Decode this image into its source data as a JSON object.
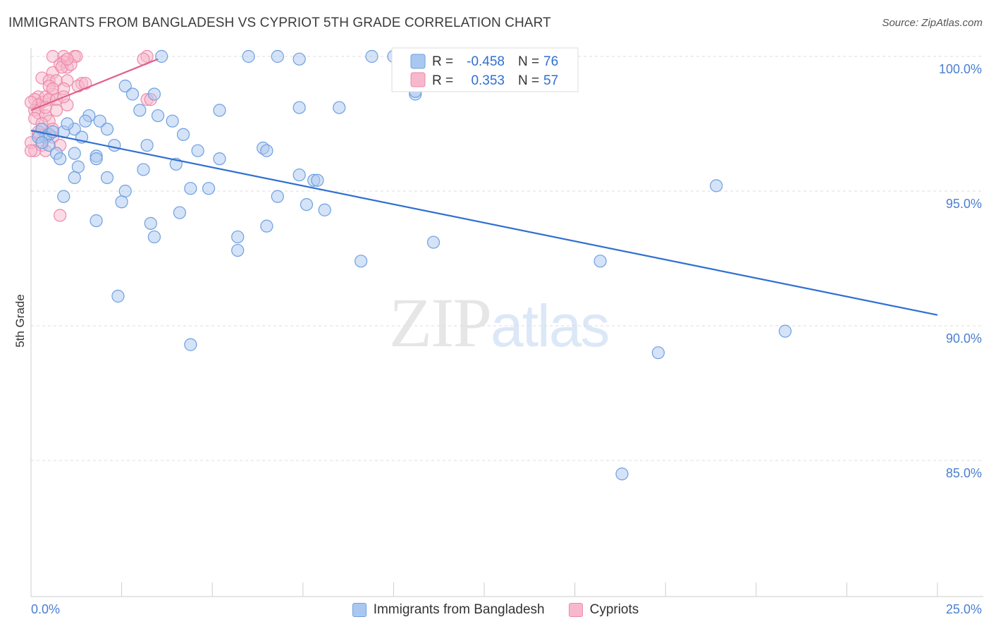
{
  "header": {
    "title": "IMMIGRANTS FROM BANGLADESH VS CYPRIOT 5TH GRADE CORRELATION CHART",
    "source": "Source: ZipAtlas.com"
  },
  "watermark": {
    "zip": "ZIP",
    "atlas": "atlas"
  },
  "colors": {
    "blue_fill": "#a9c8f0",
    "blue_stroke": "#6f9fe0",
    "blue_line": "#2f6fd0",
    "pink_fill": "#f7b8cc",
    "pink_stroke": "#ec8aaa",
    "pink_line": "#e0608a",
    "tick_text": "#4a7fd0",
    "grid": "#dddddd"
  },
  "chart_data": {
    "type": "scatter",
    "title": "IMMIGRANTS FROM BANGLADESH VS CYPRIOT 5TH GRADE CORRELATION CHART",
    "xlabel": "",
    "ylabel": "5th Grade",
    "xlim": [
      0,
      25
    ],
    "ylim": [
      80.5,
      100.4
    ],
    "x_tick_labels": [
      "0.0%",
      "25.0%"
    ],
    "y_ticks": [
      85,
      90,
      95,
      100
    ],
    "y_tick_labels": [
      "85.0%",
      "90.0%",
      "95.0%",
      "100.0%"
    ],
    "grid": true,
    "legend": {
      "position": "top-center",
      "entries": [
        {
          "r_label": "R =",
          "r_value": "-0.458",
          "n_label": "N =",
          "n_value": "76"
        },
        {
          "r_label": "R =",
          "r_value": "0.353",
          "n_label": "N =",
          "n_value": "57"
        }
      ]
    },
    "series": [
      {
        "name": "Immigrants from Bangladesh",
        "color": "#a9c8f0",
        "trend": {
          "x": [
            0.0,
            25.0
          ],
          "y": [
            97.25,
            90.4
          ]
        },
        "points": [
          [
            3.6,
            100
          ],
          [
            6.0,
            100
          ],
          [
            6.8,
            100
          ],
          [
            7.4,
            99.9
          ],
          [
            9.4,
            100
          ],
          [
            10.0,
            100
          ],
          [
            10.6,
            98.6
          ],
          [
            2.6,
            98.9
          ],
          [
            3.4,
            98.6
          ],
          [
            2.8,
            98.6
          ],
          [
            7.4,
            98.1
          ],
          [
            3.0,
            98.0
          ],
          [
            8.5,
            98.1
          ],
          [
            1.6,
            97.8
          ],
          [
            1.5,
            97.6
          ],
          [
            1.9,
            97.6
          ],
          [
            2.1,
            97.3
          ],
          [
            1.2,
            97.3
          ],
          [
            0.9,
            97.2
          ],
          [
            0.3,
            97.3
          ],
          [
            0.5,
            97.1
          ],
          [
            0.4,
            97.0
          ],
          [
            1.4,
            97.0
          ],
          [
            3.5,
            97.8
          ],
          [
            3.9,
            97.6
          ],
          [
            4.2,
            97.1
          ],
          [
            0.5,
            96.7
          ],
          [
            1.2,
            96.4
          ],
          [
            2.3,
            96.7
          ],
          [
            3.2,
            96.7
          ],
          [
            0.7,
            96.4
          ],
          [
            0.8,
            96.2
          ],
          [
            1.8,
            96.3
          ],
          [
            1.8,
            96.2
          ],
          [
            4.6,
            96.5
          ],
          [
            5.2,
            96.2
          ],
          [
            6.4,
            96.6
          ],
          [
            6.5,
            96.5
          ],
          [
            1.3,
            95.9
          ],
          [
            3.1,
            95.8
          ],
          [
            4.0,
            96.0
          ],
          [
            1.2,
            95.5
          ],
          [
            2.1,
            95.5
          ],
          [
            7.4,
            95.6
          ],
          [
            7.8,
            95.4
          ],
          [
            7.9,
            95.4
          ],
          [
            0.9,
            94.8
          ],
          [
            2.6,
            95.0
          ],
          [
            4.4,
            95.1
          ],
          [
            4.9,
            95.1
          ],
          [
            6.8,
            94.8
          ],
          [
            7.6,
            94.5
          ],
          [
            8.1,
            94.3
          ],
          [
            2.5,
            94.6
          ],
          [
            4.1,
            94.2
          ],
          [
            1.8,
            93.9
          ],
          [
            3.3,
            93.8
          ],
          [
            6.5,
            93.7
          ],
          [
            3.4,
            93.3
          ],
          [
            5.7,
            93.3
          ],
          [
            5.7,
            92.8
          ],
          [
            9.1,
            92.4
          ],
          [
            11.1,
            93.1
          ],
          [
            15.7,
            92.4
          ],
          [
            18.9,
            95.2
          ],
          [
            2.4,
            91.1
          ],
          [
            4.4,
            89.3
          ],
          [
            20.8,
            89.8
          ],
          [
            17.3,
            89.0
          ],
          [
            16.3,
            84.5
          ],
          [
            0.2,
            97.0
          ],
          [
            0.3,
            96.8
          ],
          [
            10.6,
            98.7
          ],
          [
            5.2,
            98.0
          ],
          [
            1.0,
            97.5
          ],
          [
            0.6,
            97.2
          ]
        ]
      },
      {
        "name": "Cypriots",
        "color": "#f7b8cc",
        "trend": {
          "x": [
            0.0,
            3.5
          ],
          "y": [
            98.0,
            99.9
          ]
        },
        "points": [
          [
            0.6,
            100
          ],
          [
            0.9,
            100
          ],
          [
            1.2,
            100
          ],
          [
            1.25,
            100
          ],
          [
            3.2,
            100
          ],
          [
            3.1,
            99.9
          ],
          [
            0.9,
            99.8
          ],
          [
            0.8,
            99.7
          ],
          [
            1.0,
            99.6
          ],
          [
            0.6,
            99.4
          ],
          [
            0.85,
            99.6
          ],
          [
            0.3,
            99.2
          ],
          [
            0.5,
            99.1
          ],
          [
            0.7,
            99.1
          ],
          [
            1.0,
            99.1
          ],
          [
            1.4,
            99.0
          ],
          [
            0.9,
            98.8
          ],
          [
            0.6,
            98.6
          ],
          [
            0.2,
            98.5
          ],
          [
            0.3,
            98.3
          ],
          [
            0.4,
            98.5
          ],
          [
            0.5,
            98.4
          ],
          [
            0.7,
            98.4
          ],
          [
            0.1,
            98.4
          ],
          [
            0.2,
            98.2
          ],
          [
            0.1,
            98.0
          ],
          [
            0.2,
            97.9
          ],
          [
            0.4,
            97.8
          ],
          [
            1.0,
            98.2
          ],
          [
            3.2,
            98.4
          ],
          [
            3.3,
            98.4
          ],
          [
            0.0,
            98.3
          ],
          [
            0.1,
            97.7
          ],
          [
            0.5,
            97.6
          ],
          [
            0.3,
            97.3
          ],
          [
            0.6,
            97.3
          ],
          [
            0.4,
            97.1
          ],
          [
            0.2,
            97.1
          ],
          [
            0.6,
            97.0
          ],
          [
            0.0,
            96.8
          ],
          [
            0.3,
            96.7
          ],
          [
            0.8,
            96.7
          ],
          [
            0.4,
            96.5
          ],
          [
            0.1,
            96.5
          ],
          [
            0.0,
            96.5
          ],
          [
            0.8,
            94.1
          ],
          [
            1.3,
            98.9
          ],
          [
            1.5,
            99.0
          ],
          [
            0.7,
            98.0
          ],
          [
            0.9,
            98.5
          ],
          [
            1.1,
            99.7
          ],
          [
            0.5,
            98.9
          ],
          [
            0.3,
            97.5
          ],
          [
            0.2,
            97.2
          ],
          [
            1.0,
            99.9
          ],
          [
            0.4,
            98.1
          ],
          [
            0.6,
            98.8
          ]
        ]
      }
    ]
  }
}
